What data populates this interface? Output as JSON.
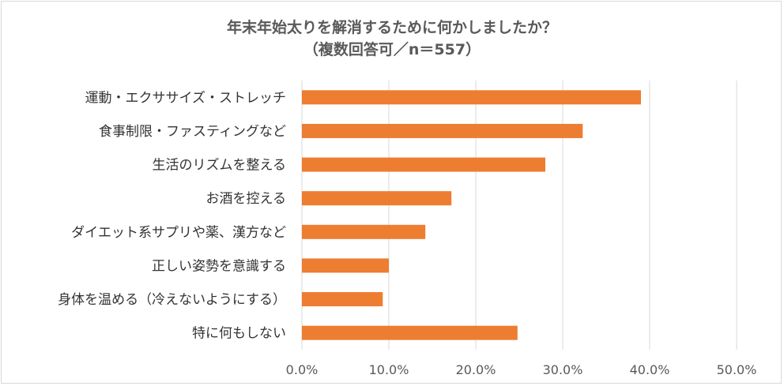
{
  "chart_data": {
    "type": "bar",
    "orientation": "horizontal",
    "title": "年末年始太りを解消するために何かしましたか？",
    "subtitle": "（複数回答可／n＝557）",
    "categories": [
      "運動・エクササイズ・ストレッチ",
      "食事制限・ファスティングなど",
      "生活のリズムを整える",
      "お酒を控える",
      "ダイエット系サプリや薬、漢方など",
      "正しい姿勢を意識する",
      "身体を温める（冷えないようにする）",
      "特に何もしない"
    ],
    "values": [
      39.0,
      32.3,
      28.0,
      17.2,
      14.2,
      10.0,
      9.3,
      24.8
    ],
    "xlim": [
      0,
      50
    ],
    "x_ticks": [
      "0.0%",
      "10.0%",
      "20.0%",
      "30.0%",
      "40.0%",
      "50.0%"
    ],
    "tick_values": [
      0,
      10,
      20,
      30,
      40,
      50
    ],
    "bar_color": "#ed7d31",
    "grid_color": "#d9d9d9",
    "text_color": "#595959",
    "grid": true,
    "legend": "none"
  }
}
